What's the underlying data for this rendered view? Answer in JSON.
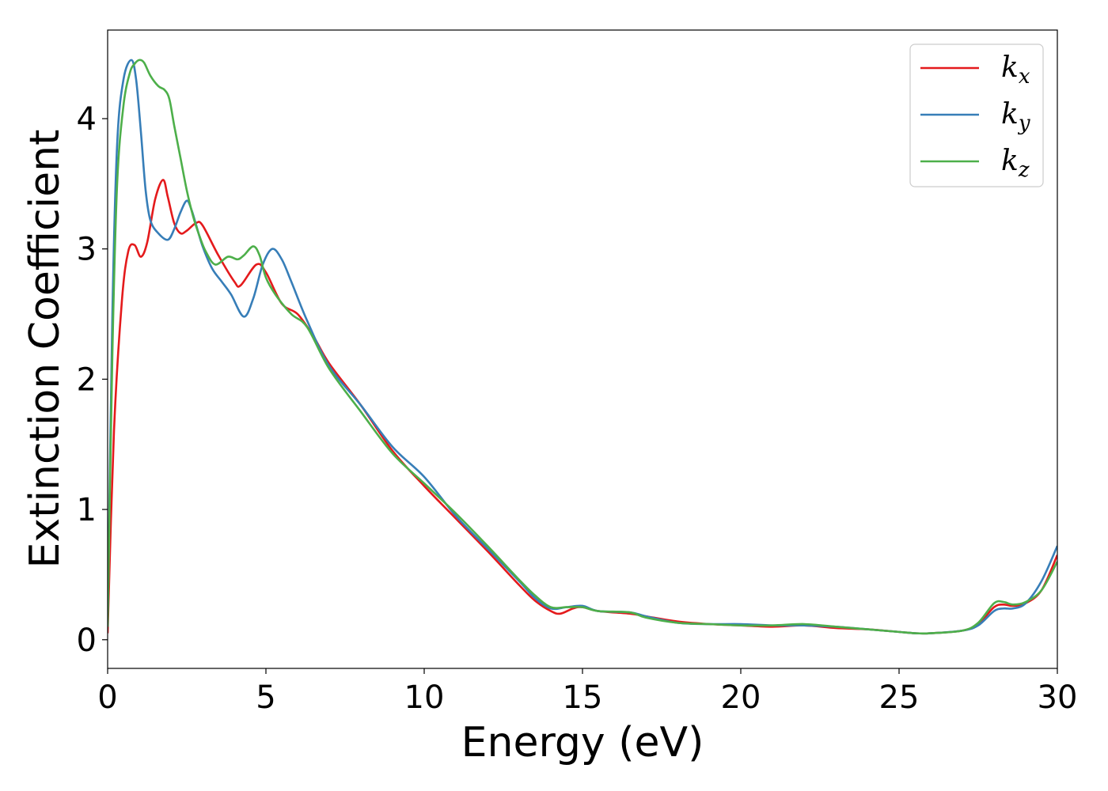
{
  "chart_data": {
    "type": "line",
    "title": "",
    "xlabel": "Energy (eV)",
    "ylabel": "Extinction Coefficient",
    "xlim": [
      0,
      30
    ],
    "ylim": [
      -0.22,
      4.68
    ],
    "xticks": [
      0,
      5,
      10,
      15,
      20,
      25,
      30
    ],
    "yticks": [
      0,
      1,
      2,
      3,
      4
    ],
    "grid": false,
    "legend_position": "top-right",
    "series": [
      {
        "name": "k_x",
        "label_main": "k",
        "label_sub": "x",
        "color": "#e41a1c",
        "x": [
          0,
          0.2,
          0.45,
          0.65,
          0.85,
          1.05,
          1.25,
          1.5,
          1.75,
          1.9,
          2.1,
          2.3,
          2.5,
          2.8,
          3.0,
          3.5,
          4.0,
          4.2,
          4.7,
          5.0,
          5.5,
          6.0,
          6.5,
          7.0,
          8.0,
          9.0,
          10.0,
          11.0,
          12.0,
          13.0,
          13.5,
          14.0,
          14.3,
          14.7,
          15.0,
          15.5,
          16.5,
          17.0,
          18.0,
          19.0,
          20.0,
          21.0,
          22.0,
          23.0,
          24.0,
          25.0,
          25.5,
          26.0,
          27.0,
          27.5,
          28.0,
          28.3,
          28.6,
          29.0,
          29.5,
          30.0
        ],
        "y": [
          0.05,
          1.6,
          2.6,
          2.98,
          3.03,
          2.94,
          3.05,
          3.38,
          3.53,
          3.4,
          3.2,
          3.12,
          3.14,
          3.2,
          3.18,
          2.95,
          2.75,
          2.72,
          2.88,
          2.82,
          2.58,
          2.5,
          2.33,
          2.12,
          1.8,
          1.45,
          1.18,
          0.93,
          0.68,
          0.42,
          0.3,
          0.22,
          0.2,
          0.24,
          0.25,
          0.22,
          0.2,
          0.18,
          0.14,
          0.12,
          0.11,
          0.1,
          0.11,
          0.09,
          0.08,
          0.06,
          0.05,
          0.05,
          0.07,
          0.12,
          0.25,
          0.27,
          0.26,
          0.28,
          0.38,
          0.65
        ]
      },
      {
        "name": "k_y",
        "label_main": "k",
        "label_sub": "y",
        "color": "#377eb8",
        "x": [
          0,
          0.15,
          0.3,
          0.5,
          0.75,
          0.9,
          1.05,
          1.2,
          1.35,
          1.6,
          1.9,
          2.1,
          2.3,
          2.5,
          2.65,
          2.8,
          3.0,
          3.3,
          3.6,
          3.9,
          4.3,
          4.6,
          4.9,
          5.2,
          5.5,
          5.8,
          6.3,
          7.0,
          8.0,
          9.0,
          10.0,
          11.0,
          12.0,
          13.0,
          13.5,
          14.0,
          14.5,
          15.0,
          15.5,
          16.5,
          17.0,
          18.0,
          19.0,
          20.0,
          21.0,
          22.0,
          23.0,
          24.0,
          25.0,
          25.5,
          26.0,
          27.0,
          27.5,
          28.0,
          28.3,
          28.6,
          29.0,
          29.5,
          30.0
        ],
        "y": [
          0.1,
          2.5,
          3.8,
          4.3,
          4.45,
          4.3,
          3.9,
          3.45,
          3.22,
          3.12,
          3.07,
          3.15,
          3.28,
          3.37,
          3.3,
          3.18,
          3.02,
          2.85,
          2.75,
          2.65,
          2.48,
          2.62,
          2.88,
          3.0,
          2.92,
          2.75,
          2.45,
          2.1,
          1.8,
          1.48,
          1.25,
          0.95,
          0.7,
          0.45,
          0.32,
          0.24,
          0.25,
          0.26,
          0.22,
          0.21,
          0.18,
          0.13,
          0.12,
          0.12,
          0.11,
          0.11,
          0.1,
          0.08,
          0.06,
          0.05,
          0.05,
          0.07,
          0.11,
          0.22,
          0.24,
          0.24,
          0.28,
          0.45,
          0.72
        ]
      },
      {
        "name": "k_z",
        "label_main": "k",
        "label_sub": "z",
        "color": "#4daf4a",
        "x": [
          0,
          0.15,
          0.3,
          0.5,
          0.7,
          0.85,
          1.0,
          1.15,
          1.35,
          1.6,
          1.8,
          1.95,
          2.1,
          2.3,
          2.5,
          2.7,
          2.9,
          3.1,
          3.4,
          3.8,
          4.1,
          4.3,
          4.6,
          4.8,
          5.0,
          5.3,
          5.8,
          6.3,
          7.0,
          8.0,
          9.0,
          10.0,
          11.0,
          12.0,
          13.0,
          13.5,
          14.0,
          14.5,
          15.0,
          15.5,
          16.5,
          17.0,
          18.0,
          19.0,
          20.0,
          21.0,
          22.0,
          23.0,
          24.0,
          25.0,
          25.5,
          26.0,
          27.0,
          27.5,
          28.0,
          28.3,
          28.6,
          29.0,
          29.5,
          30.0
        ],
        "y": [
          0.1,
          2.2,
          3.5,
          4.1,
          4.35,
          4.42,
          4.45,
          4.43,
          4.33,
          4.25,
          4.22,
          4.15,
          3.95,
          3.7,
          3.45,
          3.25,
          3.1,
          2.98,
          2.88,
          2.94,
          2.92,
          2.95,
          3.02,
          2.95,
          2.78,
          2.65,
          2.5,
          2.4,
          2.08,
          1.75,
          1.43,
          1.2,
          0.97,
          0.72,
          0.46,
          0.34,
          0.25,
          0.25,
          0.25,
          0.22,
          0.21,
          0.17,
          0.13,
          0.12,
          0.11,
          0.11,
          0.12,
          0.1,
          0.08,
          0.06,
          0.05,
          0.05,
          0.07,
          0.13,
          0.28,
          0.29,
          0.27,
          0.29,
          0.38,
          0.6
        ]
      }
    ]
  }
}
